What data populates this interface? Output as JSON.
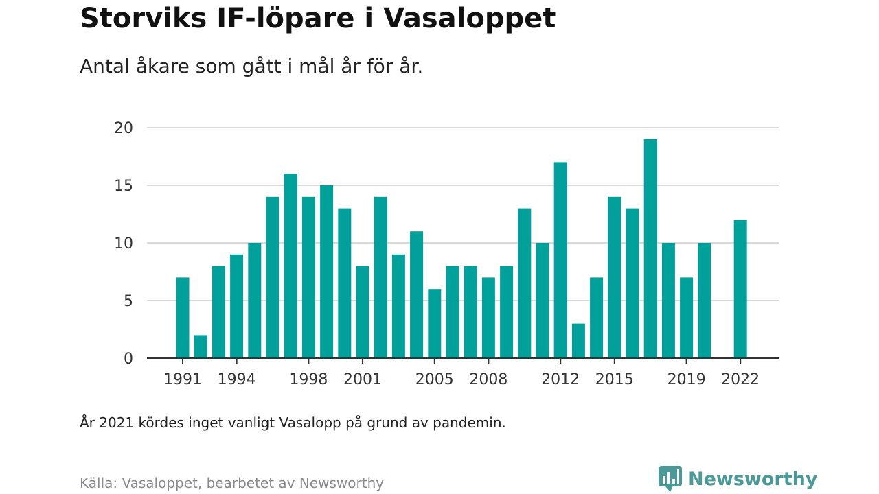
{
  "title": "Storviks IF-löpare i Vasaloppet",
  "subtitle": "Antal åkare som gått i mål år för år.",
  "note": "År 2021 kördes inget vanligt Vasalopp på grund av pandemin.",
  "source": "Källa: Vasaloppet, bearbetet av Newsworthy",
  "brand": {
    "name": "Newsworthy",
    "logo_icon": "bar-chart-speech-bubble-icon"
  },
  "colors": {
    "bar": "#00a19a",
    "grid": "#d9d9d9",
    "axis": "#333333",
    "brand": "#4a9a98"
  },
  "chart_data": {
    "type": "bar",
    "categories": [
      "1991",
      "1992",
      "1993",
      "1994",
      "1995",
      "1996",
      "1997",
      "1998",
      "1999",
      "2000",
      "2001",
      "2002",
      "2003",
      "2004",
      "2005",
      "2006",
      "2007",
      "2008",
      "2009",
      "2010",
      "2011",
      "2012",
      "2013",
      "2014",
      "2015",
      "2016",
      "2017",
      "2018",
      "2019",
      "2020",
      "2021",
      "2022"
    ],
    "values": [
      7,
      2,
      8,
      9,
      10,
      14,
      16,
      14,
      15,
      13,
      8,
      14,
      9,
      11,
      6,
      8,
      8,
      7,
      8,
      13,
      10,
      17,
      3,
      7,
      14,
      13,
      19,
      10,
      7,
      10,
      null,
      12
    ],
    "x_tick_labels": [
      "1991",
      "1994",
      "1998",
      "2001",
      "2005",
      "2008",
      "2012",
      "2015",
      "2019",
      "2022"
    ],
    "y_ticks": [
      0,
      5,
      10,
      15,
      20
    ],
    "ylim": [
      0,
      20
    ],
    "grid": true,
    "xlabel": "",
    "ylabel": ""
  }
}
